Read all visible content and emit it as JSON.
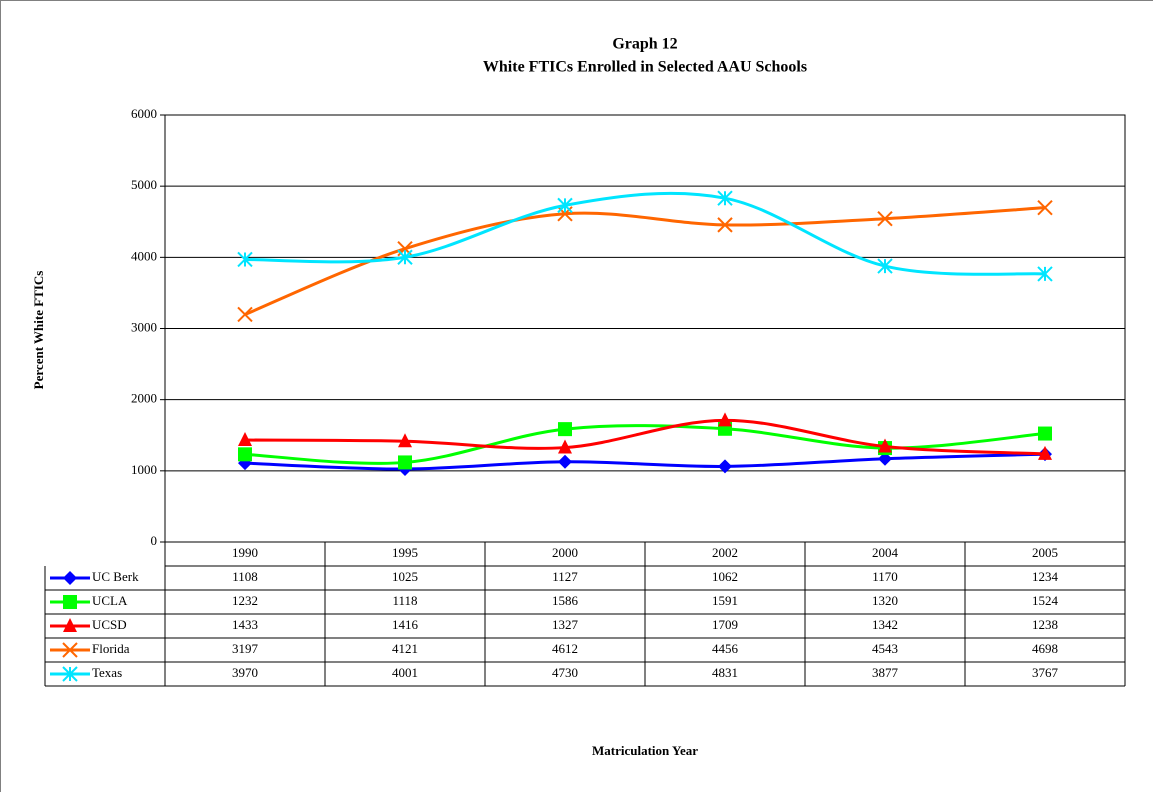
{
  "chart_data": {
    "type": "line",
    "title": "Graph 12",
    "subtitle": "White FTICs Enrolled in Selected AAU Schools",
    "y_label": "Percent White FTICs",
    "x_label": "Matriculation Year",
    "categories": [
      "1990",
      "1995",
      "2000",
      "2002",
      "2004",
      "2005"
    ],
    "ylim": [
      0,
      6000
    ],
    "yticks": [
      0,
      1000,
      2000,
      3000,
      4000,
      5000,
      6000
    ],
    "grid": true,
    "smooth": true,
    "series": [
      {
        "name": "UC Berk",
        "color": "#0000ff",
        "marker": "diamond",
        "values": [
          1108,
          1025,
          1127,
          1062,
          1170,
          1234
        ]
      },
      {
        "name": "UCLA",
        "color": "#00ff00",
        "marker": "square",
        "values": [
          1232,
          1118,
          1586,
          1591,
          1320,
          1524
        ]
      },
      {
        "name": "UCSD",
        "color": "#ff0000",
        "marker": "triangle",
        "values": [
          1433,
          1416,
          1327,
          1709,
          1342,
          1238
        ]
      },
      {
        "name": "Florida",
        "color": "#ff6600",
        "marker": "x",
        "values": [
          3197,
          4121,
          4612,
          4456,
          4543,
          4698
        ]
      },
      {
        "name": "Texas",
        "color": "#00e5ff",
        "marker": "star",
        "values": [
          3970,
          4001,
          4730,
          4831,
          3877,
          3767
        ]
      }
    ]
  }
}
